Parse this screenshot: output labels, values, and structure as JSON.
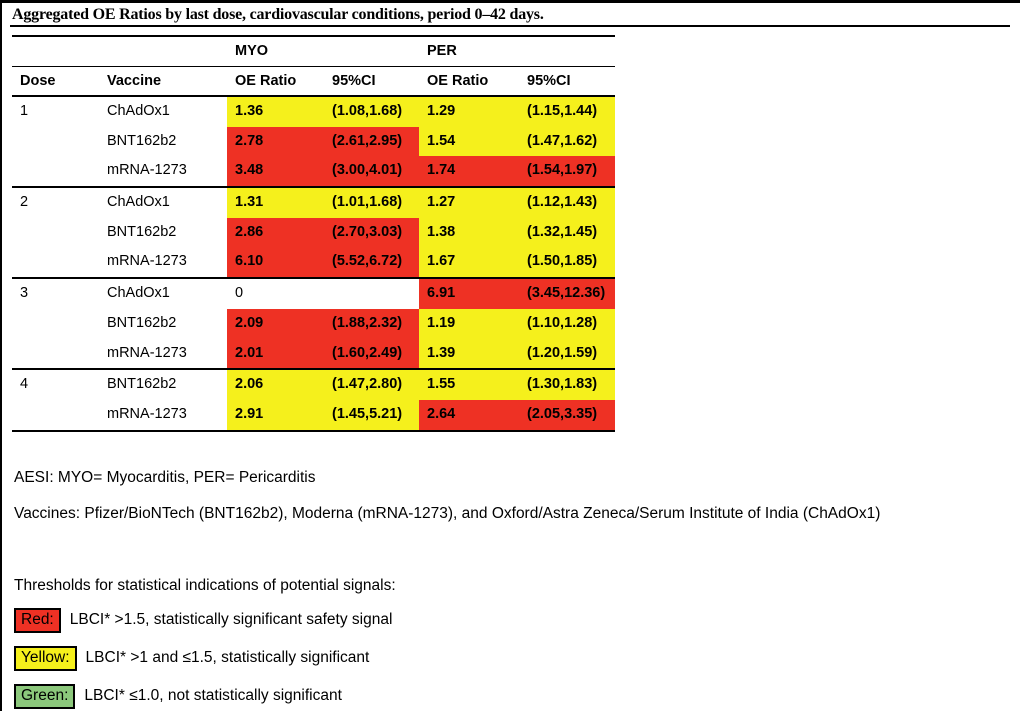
{
  "caption": "Aggregated OE Ratios by last dose, cardiovascular conditions, period 0–42 days.",
  "colors": {
    "red": "#EE3124",
    "yellow": "#F5F01C",
    "green": "#8CC87C",
    "white": "#FFFFFF"
  },
  "table": {
    "group_headers": [
      "MYO",
      "PER"
    ],
    "col_headers": [
      "Dose",
      "Vaccine",
      "OE Ratio",
      "95%CI",
      "OE Ratio",
      "95%CI"
    ],
    "groups": [
      {
        "dose": "1",
        "rows": [
          {
            "vaccine": "ChAdOx1",
            "myo": {
              "oe": "1.36",
              "ci": "(1.08,1.68)",
              "color": "yellow"
            },
            "per": {
              "oe": "1.29",
              "ci": "(1.15,1.44)",
              "color": "yellow"
            }
          },
          {
            "vaccine": "BNT162b2",
            "myo": {
              "oe": "2.78",
              "ci": "(2.61,2.95)",
              "color": "red"
            },
            "per": {
              "oe": "1.54",
              "ci": "(1.47,1.62)",
              "color": "yellow"
            }
          },
          {
            "vaccine": "mRNA-1273",
            "myo": {
              "oe": "3.48",
              "ci": "(3.00,4.01)",
              "color": "red"
            },
            "per": {
              "oe": "1.74",
              "ci": "(1.54,1.97)",
              "color": "red"
            }
          }
        ]
      },
      {
        "dose": "2",
        "rows": [
          {
            "vaccine": "ChAdOx1",
            "myo": {
              "oe": "1.31",
              "ci": "(1.01,1.68)",
              "color": "yellow"
            },
            "per": {
              "oe": "1.27",
              "ci": "(1.12,1.43)",
              "color": "yellow"
            }
          },
          {
            "vaccine": "BNT162b2",
            "myo": {
              "oe": "2.86",
              "ci": "(2.70,3.03)",
              "color": "red"
            },
            "per": {
              "oe": "1.38",
              "ci": "(1.32,1.45)",
              "color": "yellow"
            }
          },
          {
            "vaccine": "mRNA-1273",
            "myo": {
              "oe": "6.10",
              "ci": "(5.52,6.72)",
              "color": "red"
            },
            "per": {
              "oe": "1.67",
              "ci": "(1.50,1.85)",
              "color": "yellow"
            }
          }
        ]
      },
      {
        "dose": "3",
        "rows": [
          {
            "vaccine": "ChAdOx1",
            "myo": {
              "oe": "0",
              "ci": "",
              "color": "white"
            },
            "per": {
              "oe": "6.91",
              "ci": "(3.45,12.36)",
              "color": "red"
            }
          },
          {
            "vaccine": "BNT162b2",
            "myo": {
              "oe": "2.09",
              "ci": "(1.88,2.32)",
              "color": "red"
            },
            "per": {
              "oe": "1.19",
              "ci": "(1.10,1.28)",
              "color": "yellow"
            }
          },
          {
            "vaccine": "mRNA-1273",
            "myo": {
              "oe": "2.01",
              "ci": "(1.60,2.49)",
              "color": "red"
            },
            "per": {
              "oe": "1.39",
              "ci": "(1.20,1.59)",
              "color": "yellow"
            }
          }
        ]
      },
      {
        "dose": "4",
        "rows": [
          {
            "vaccine": "BNT162b2",
            "myo": {
              "oe": "2.06",
              "ci": "(1.47,2.80)",
              "color": "yellow"
            },
            "per": {
              "oe": "1.55",
              "ci": "(1.30,1.83)",
              "color": "yellow"
            }
          },
          {
            "vaccine": "mRNA-1273",
            "myo": {
              "oe": "2.91",
              "ci": "(1.45,5.21)",
              "color": "yellow"
            },
            "per": {
              "oe": "2.64",
              "ci": "(2.05,3.35)",
              "color": "red"
            }
          }
        ]
      }
    ]
  },
  "notes": {
    "aesi": "AESI: MYO= Myocarditis, PER= Pericarditis",
    "vaccines": "Vaccines: Pfizer/BioNTech (BNT162b2), Moderna (mRNA-1273), and Oxford/Astra Zeneca/Serum Institute of India (ChAdOx1)"
  },
  "legend": {
    "title": "Thresholds for statistical indications of potential signals:",
    "items": [
      {
        "label": "Red:",
        "color_key": "red",
        "text": "LBCI* >1.5, statistically significant safety signal"
      },
      {
        "label": "Yellow:",
        "color_key": "yellow",
        "text": "LBCI* >1 and ≤1.5, statistically significant"
      },
      {
        "label": "Green:",
        "color_key": "green",
        "text": "LBCI* ≤1.0, not statistically significant"
      }
    ]
  }
}
